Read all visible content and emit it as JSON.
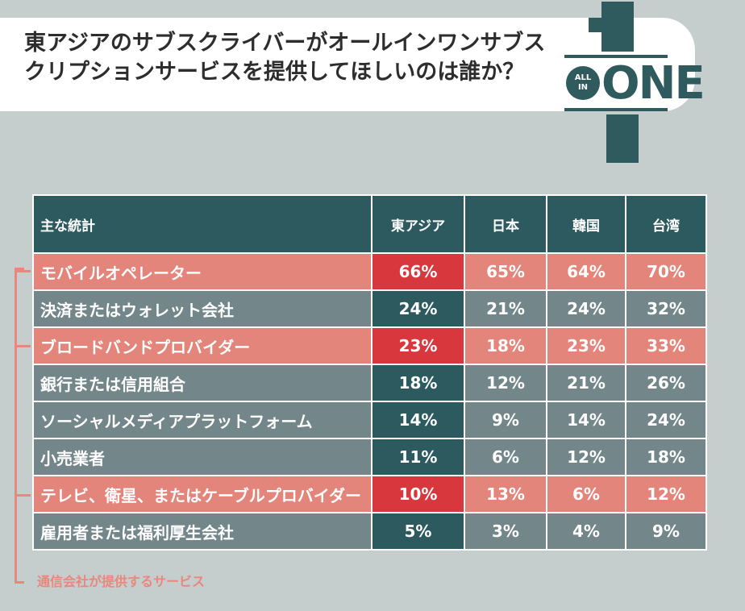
{
  "title": "東アジアのサブスクライバーがオールインワンサブスクリプションサービスを提供してほしいのは誰か？",
  "logo": {
    "circle_line1": "ALL",
    "circle_line2": "IN",
    "word": "ONE"
  },
  "colors": {
    "header": "#2c5a5f",
    "plain_row": "#73878a",
    "highlight_row": "#e3857a",
    "highlight_first_col": "#d8373e",
    "legend_accent": "#e9877c"
  },
  "legend_note": "通信会社が提供するサービス",
  "chart_data": {
    "type": "table",
    "columns": [
      "主な統計",
      "東アジア",
      "日本",
      "韓国",
      "台湾"
    ],
    "rows": [
      {
        "label": "モバイルオペレーター",
        "values": [
          "66%",
          "65%",
          "64%",
          "70%"
        ],
        "highlight": true
      },
      {
        "label": "決済またはウォレット会社",
        "values": [
          "24%",
          "21%",
          "24%",
          "32%"
        ],
        "highlight": false
      },
      {
        "label": "ブロードバンドプロバイダー",
        "values": [
          "23%",
          "18%",
          "23%",
          "33%"
        ],
        "highlight": true
      },
      {
        "label": "銀行または信用組合",
        "values": [
          "18%",
          "12%",
          "21%",
          "26%"
        ],
        "highlight": false
      },
      {
        "label": "ソーシャルメディアプラットフォーム",
        "values": [
          "14%",
          "9%",
          "14%",
          "24%"
        ],
        "highlight": false
      },
      {
        "label": "小売業者",
        "values": [
          "11%",
          "6%",
          "12%",
          "18%"
        ],
        "highlight": false
      },
      {
        "label": "テレビ、衛星、またはケーブルプロバイダー",
        "values": [
          "10%",
          "13%",
          "6%",
          "12%"
        ],
        "highlight": true
      },
      {
        "label": "雇用者または福利厚生会社",
        "values": [
          "5%",
          "3%",
          "4%",
          "9%"
        ],
        "highlight": false
      }
    ]
  }
}
